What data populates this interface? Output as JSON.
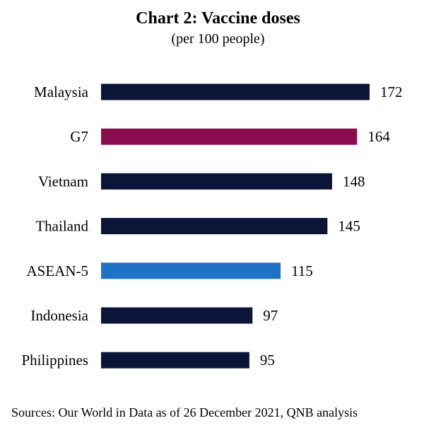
{
  "chart_data": {
    "type": "bar",
    "orientation": "horizontal",
    "title": "Chart 2: Vaccine doses",
    "subtitle": "(per 100 people)",
    "categories": [
      "Malaysia",
      "G7",
      "Vietnam",
      "Thailand",
      "ASEAN-5",
      "Indonesia",
      "Philippines"
    ],
    "values": [
      172,
      164,
      148,
      145,
      115,
      97,
      95
    ],
    "colors": [
      "#0c1538",
      "#8a0e4f",
      "#0c1538",
      "#0c1538",
      "#1f72c4",
      "#0c1538",
      "#0c1538"
    ],
    "xlim": [
      0,
      172
    ],
    "grid": false,
    "xlabel": "",
    "ylabel": ""
  },
  "source": "Sources: Our World in Data as of 26 December 2021, QNB analysis"
}
